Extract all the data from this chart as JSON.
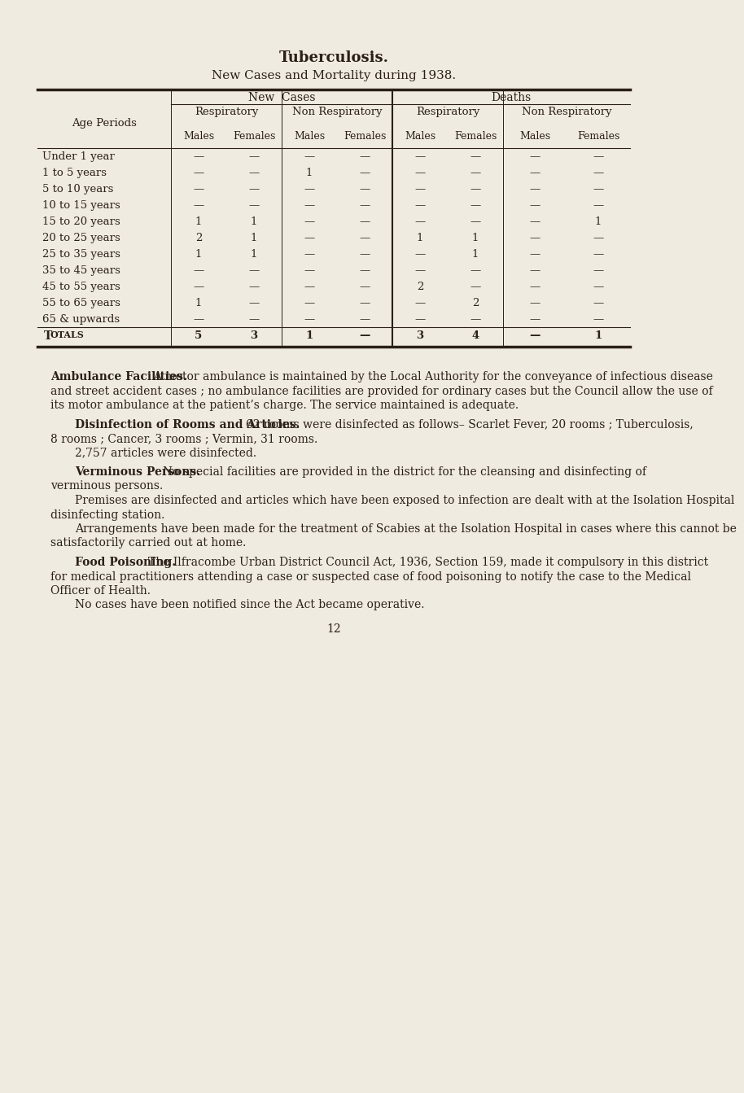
{
  "bg_color": "#f0ebe0",
  "text_color": "#2a2018",
  "title": "Tuberculosis.",
  "subtitle": "New Cases and Mortality during 1938.",
  "age_periods": [
    "Under 1 year",
    "1 to 5 years",
    "5 to 10 years",
    "10 to 15 years",
    "15 to 20 years",
    "20 to 25 years",
    "25 to 35 years",
    "35 to 45 years",
    "45 to 55 years",
    "55 to 65 years",
    "65 & upwards",
    "Totals"
  ],
  "data": [
    [
      "—",
      "—",
      "—",
      "—",
      "—",
      "—",
      "—",
      "—"
    ],
    [
      "—",
      "—",
      "1",
      "—",
      "—",
      "—",
      "—",
      "—"
    ],
    [
      "—",
      "—",
      "—",
      "—",
      "—",
      "—",
      "—",
      "—"
    ],
    [
      "—",
      "—",
      "—",
      "—",
      "—",
      "—",
      "—",
      "—"
    ],
    [
      "1",
      "1",
      "—",
      "—",
      "—",
      "—",
      "—",
      "1"
    ],
    [
      "2",
      "1",
      "—",
      "—",
      "1",
      "1",
      "—",
      "—"
    ],
    [
      "1",
      "1",
      "—",
      "—",
      "—",
      "1",
      "—",
      "—"
    ],
    [
      "—",
      "—",
      "—",
      "—",
      "—",
      "—",
      "—",
      "—"
    ],
    [
      "—",
      "—",
      "—",
      "—",
      "2",
      "—",
      "—",
      "—"
    ],
    [
      "1",
      "—",
      "—",
      "—",
      "—",
      "2",
      "—",
      "—"
    ],
    [
      "—",
      "—",
      "—",
      "—",
      "—",
      "—",
      "—",
      "—"
    ],
    [
      "5",
      "3",
      "1",
      "—",
      "3",
      "4",
      "—",
      "1"
    ]
  ],
  "para1_heading": "Ambulance Facilities.",
  "para1_body": "A motor ambulance is maintained by the Local Authority for the conveyance of infectious disease and street accident cases ; no ambulance facilities are provided for ordinary cases but the Council allow the use of its motor ambulance at the patient’s charge.  The service maintained is adequate.",
  "para2_heading": "Disinfection of Rooms and Articles.",
  "para2_body_line1": "62 rooms were disinfected as follows– Scarlet Fever, 20 rooms ;  Tuberculosis, 8 rooms ;  Cancer, 3 rooms ;  Vermin, 31 rooms.",
  "para2_body_line2": "2,757 articles were disinfected.",
  "para3_heading": "Verminous Persons.",
  "para3_body_line1": "No special facilities are provided in the district for the cleansing and disinfecting of verminous persons.",
  "para3_body_line2": "Premises are disinfected and articles which have been exposed to infection are dealt with at the Isolation Hospital disinfecting station.",
  "para3_body_line3": "Arrangements have been made for the treatment of Scabies at the Isolation Hospital in cases where this cannot be satisfactorily carried out at home.",
  "para4_heading": "Food Poisoning.",
  "para4_body_line1": "The Ilfracombe Urban District Council Act, 1936, Section 159, made it compulsory in this district for medical practitioners attending a case or suspected case of food poisoning to notify the case to the Medical Officer of Health.",
  "para4_body_line2": "No cases have been notified since the Act became operative.",
  "page_number": "12"
}
